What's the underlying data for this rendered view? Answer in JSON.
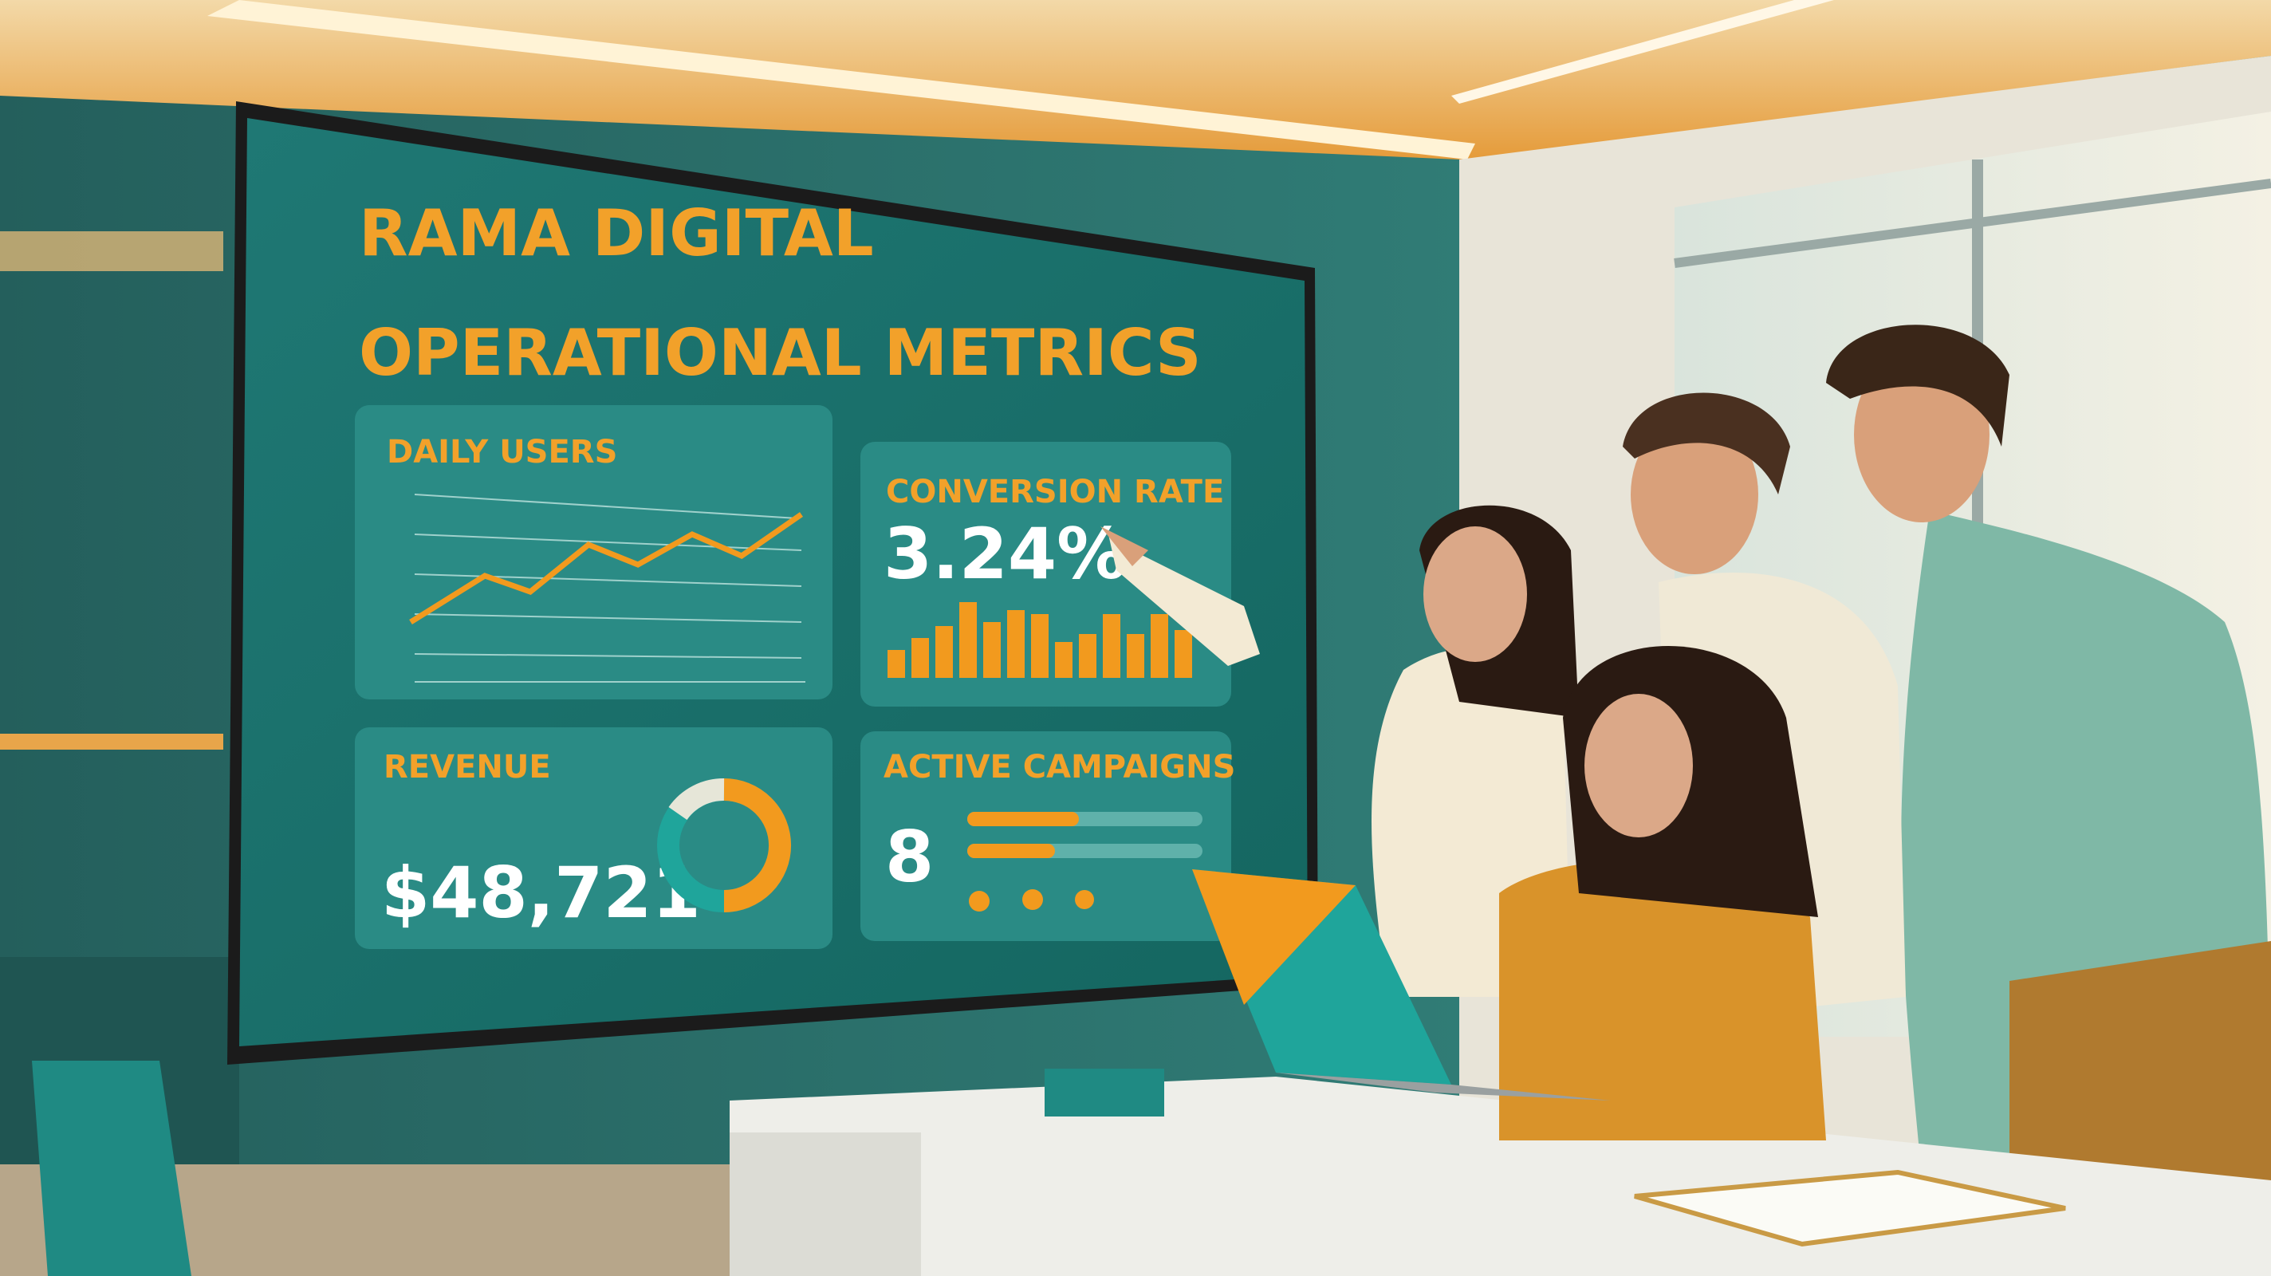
{
  "screen": {
    "title_line1": "RAMA DIGITAL",
    "title_line2": "OPERATIONAL METRICS",
    "panels": [
      {
        "label": "DAILY USERS"
      },
      {
        "label": "CONVERSION RATE",
        "value": "3.24%"
      },
      {
        "label": "REVENUE",
        "value": "$48,721"
      },
      {
        "label": "ACTIVE CAMPAIGNS",
        "value": "8"
      }
    ]
  }
}
